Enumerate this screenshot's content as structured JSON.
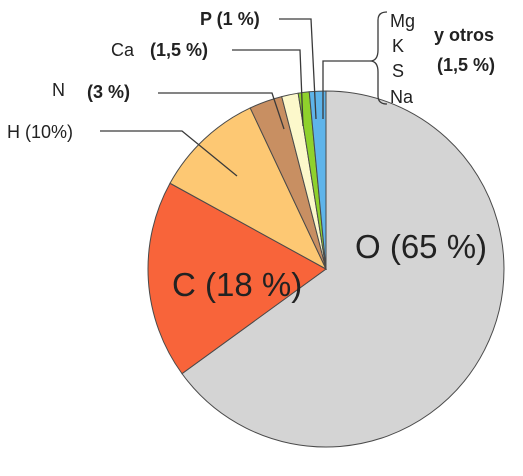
{
  "chart_data": {
    "type": "pie",
    "slices": [
      {
        "key": "O",
        "label": "O (65 %)",
        "value": 65,
        "color": "#d4d4d4"
      },
      {
        "key": "C",
        "label": "C (18 %)",
        "value": 18,
        "color": "#f8643a"
      },
      {
        "key": "H",
        "label": "H (10%)",
        "value": 10,
        "color": "#fdc873"
      },
      {
        "key": "N",
        "name": "N",
        "label": "(3 %)",
        "value": 3,
        "color": "#c88f62"
      },
      {
        "key": "Ca",
        "name": "Ca",
        "label": "(1,5 %)",
        "value": 1.5,
        "color": "#fcf8cb"
      },
      {
        "key": "P",
        "label": "P (1 %)",
        "value": 1,
        "color": "#8fd12c"
      },
      {
        "key": "otros",
        "label": "y otros",
        "sublabel": "(1,5 %)",
        "value": 1.5,
        "color": "#5eb4ea"
      }
    ],
    "others_elements": [
      "Mg",
      "K",
      "S",
      "Na"
    ]
  }
}
